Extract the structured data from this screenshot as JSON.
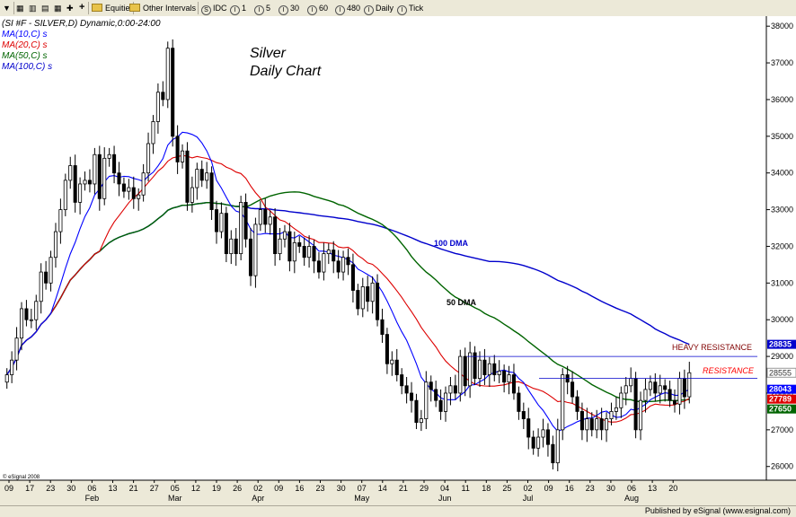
{
  "toolbar": {
    "items": [
      {
        "label": "Equities",
        "icon": "folder-icon"
      },
      {
        "label": "Other Intervals",
        "icon": "folder-icon"
      },
      {
        "label": "IDC",
        "icon": "s-circle-icon"
      },
      {
        "label": "1",
        "icon": "i-circle-icon"
      },
      {
        "label": "5",
        "icon": "i-circle-icon"
      },
      {
        "label": "30",
        "icon": "i-circle-icon"
      },
      {
        "label": "60",
        "icon": "i-circle-icon"
      },
      {
        "label": "480",
        "icon": "i-circle-icon"
      },
      {
        "label": "Daily",
        "icon": "i-circle-icon"
      },
      {
        "label": "Tick",
        "icon": "i-circle-icon"
      }
    ],
    "plus_symbol": "+"
  },
  "legend": {
    "symbol_line": "(SI #F - SILVER,D) Dynamic,0:00-24:00",
    "ma10": "MA(10,C) s",
    "ma20": "MA(20,C) s",
    "ma50": "MA(50,C) s",
    "ma100": "MA(100,C) s"
  },
  "annotations": {
    "title_line1": "Silver",
    "title_line2": "Daily Chart",
    "label_100dma": "100 DMA",
    "label_50dma": "50 DMA",
    "heavy_resistance": "HEAVY RESISTANCE",
    "resistance": "RESISTANCE",
    "copyright": "© eSignal 2008"
  },
  "status": {
    "published": "Published by eSignal (www.esignal.com)"
  },
  "colors": {
    "ma10": "#0000ff",
    "ma20": "#dd0000",
    "ma50": "#006400",
    "ma100": "#0000cc",
    "price_bar": "#000000",
    "resistance_line": "#0000cc",
    "heavy_resistance_text": "#800000",
    "resistance_text": "#ff0000"
  },
  "chart_data": {
    "type": "candlestick",
    "y_axis": {
      "min": 25700,
      "max": 38200,
      "ticks": [
        26000,
        27000,
        28000,
        29000,
        30000,
        31000,
        32000,
        33000,
        34000,
        35000,
        36000,
        37000,
        38000
      ]
    },
    "x_day_labels": [
      "09",
      "17",
      "23",
      "30",
      "06",
      "13",
      "21",
      "27",
      "05",
      "12",
      "19",
      "26",
      "02",
      "09",
      "16",
      "23",
      "30",
      "07",
      "14",
      "21",
      "29",
      "04",
      "11",
      "18",
      "25",
      "02",
      "09",
      "16",
      "23",
      "30",
      "06",
      "13",
      "20"
    ],
    "x_month_labels": [
      "Feb",
      "Mar",
      "Apr",
      "May",
      "Jun",
      "Jul",
      "Aug"
    ],
    "price_badges": [
      {
        "value": "28835",
        "type": "ma100"
      },
      {
        "value": "28555",
        "type": "price"
      },
      {
        "value": "28043",
        "type": "ma10"
      },
      {
        "value": "27789",
        "type": "ma20"
      },
      {
        "value": "27650",
        "type": "ma50"
      }
    ],
    "resistance_levels": {
      "heavy": 29000,
      "resistance": 28400
    },
    "closes": [
      28500,
      28900,
      29500,
      30300,
      30000,
      30000,
      30500,
      31300,
      31000,
      31700,
      32400,
      33000,
      33800,
      34200,
      33200,
      33700,
      33800,
      33700,
      34500,
      33300,
      34400,
      34500,
      34000,
      33700,
      33500,
      33600,
      33300,
      33400,
      34000,
      34800,
      35400,
      36200,
      36000,
      37400,
      35000,
      34300,
      34600,
      33200,
      33600,
      34100,
      33800,
      34000,
      33000,
      32400,
      32900,
      31800,
      32200,
      31800,
      33200,
      32200,
      31200,
      32600,
      33000,
      32600,
      32800,
      31800,
      32200,
      32400,
      31600,
      32100,
      32000,
      31700,
      32000,
      31600,
      31300,
      31800,
      31900,
      31600,
      31300,
      31700,
      31500,
      30800,
      30300,
      30900,
      30500,
      31000,
      30000,
      29600,
      28800,
      28900,
      28500,
      28200,
      28000,
      27800,
      27200,
      27300,
      28300,
      28100,
      27800,
      27500,
      28000,
      28200,
      28000,
      29000,
      28200,
      29100,
      28400,
      28900,
      28500,
      28800,
      28500,
      28600,
      28300,
      28500,
      28000,
      27500,
      27300,
      26800,
      26500,
      26800,
      27000,
      26600,
      26100,
      27000,
      28500,
      28300,
      27900,
      27500,
      27000,
      27300,
      27000,
      27300,
      27000,
      27300,
      27500,
      27600,
      28000,
      28200,
      28400,
      27000,
      27800,
      28100,
      28300,
      28000,
      28200,
      28100,
      27800,
      27700,
      28400,
      27900,
      28555
    ]
  }
}
